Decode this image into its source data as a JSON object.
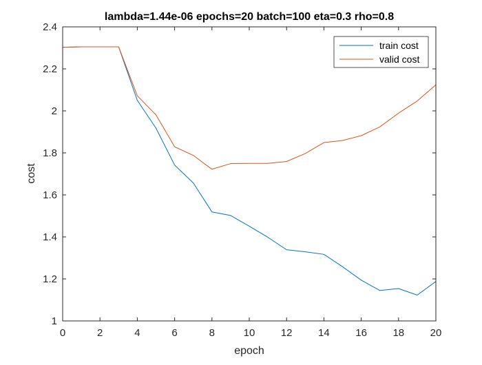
{
  "chart_data": {
    "type": "line",
    "title": "lambda=1.44e-06 epochs=20 batch=100 eta=0.3 rho=0.8",
    "xlabel": "epoch",
    "ylabel": "cost",
    "xlim": [
      0,
      20
    ],
    "ylim": [
      1,
      2.4
    ],
    "xticks": [
      0,
      2,
      4,
      6,
      8,
      10,
      12,
      14,
      16,
      18,
      20
    ],
    "yticks": [
      1,
      1.2,
      1.4,
      1.6,
      1.8,
      2,
      2.2,
      2.4
    ],
    "xtick_labels": [
      "0",
      "2",
      "4",
      "6",
      "8",
      "10",
      "12",
      "14",
      "16",
      "18",
      "20"
    ],
    "ytick_labels": [
      "1",
      "1.2",
      "1.4",
      "1.6",
      "1.8",
      "2",
      "2.2",
      "2.4"
    ],
    "grid": false,
    "legend_position": "top-right",
    "x": [
      0,
      1,
      2,
      3,
      4,
      5,
      6,
      7,
      8,
      9,
      10,
      11,
      12,
      13,
      14,
      15,
      16,
      17,
      18,
      19,
      20
    ],
    "series": [
      {
        "name": "train cost",
        "color": "#0072BD",
        "values": [
          2.303,
          2.305,
          2.305,
          2.305,
          2.05,
          1.918,
          1.742,
          1.657,
          1.519,
          1.502,
          1.451,
          1.398,
          1.339,
          1.329,
          1.317,
          1.258,
          1.194,
          1.145,
          1.154,
          1.123,
          1.188
        ]
      },
      {
        "name": "valid cost",
        "color": "#D95319",
        "values": [
          2.303,
          2.305,
          2.305,
          2.305,
          2.072,
          1.981,
          1.829,
          1.788,
          1.722,
          1.749,
          1.75,
          1.75,
          1.759,
          1.797,
          1.849,
          1.859,
          1.882,
          1.924,
          1.989,
          2.047,
          2.124
        ]
      }
    ]
  }
}
